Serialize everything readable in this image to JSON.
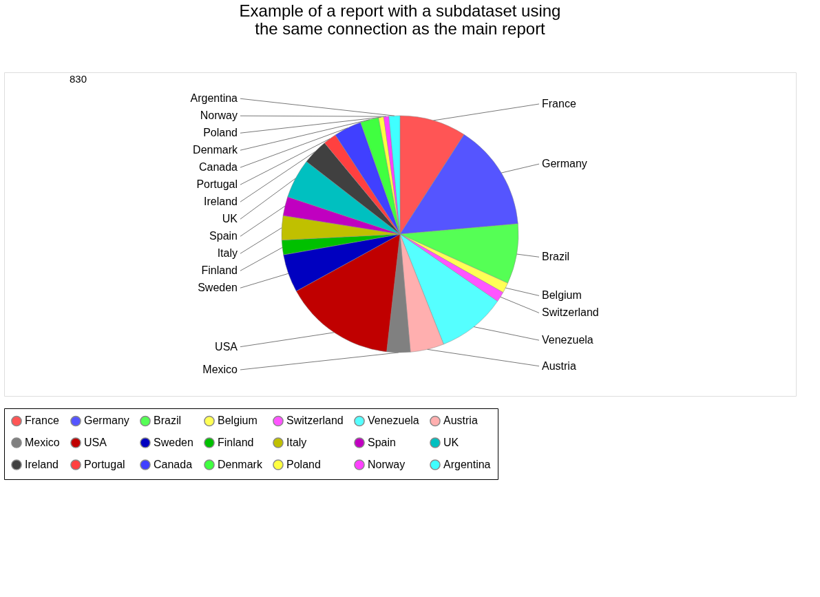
{
  "chart_data": {
    "type": "pie",
    "title": "Example of a report with a subdataset using the same connection as the main report",
    "annotations": [
      "830"
    ],
    "categories": [
      "France",
      "Germany",
      "Brazil",
      "Belgium",
      "Switzerland",
      "Venezuela",
      "Austria",
      "Mexico",
      "USA",
      "Sweden",
      "Finland",
      "Italy",
      "Spain",
      "UK",
      "Ireland",
      "Portugal",
      "Canada",
      "Denmark",
      "Poland",
      "Norway",
      "Argentina"
    ],
    "values": [
      9.1,
      14.5,
      8.2,
      1.4,
      1.4,
      9.4,
      4.6,
      3.2,
      15.2,
      5.2,
      2.0,
      3.3,
      2.6,
      5.4,
      3.5,
      1.8,
      3.8,
      2.5,
      0.7,
      0.7,
      1.5
    ],
    "colors": [
      "#ff5555",
      "#5555ff",
      "#55ff55",
      "#ffff55",
      "#ff55ff",
      "#55ffff",
      "#ffafaf",
      "#808080",
      "#c00000",
      "#0000c0",
      "#00c000",
      "#c0c000",
      "#c000c0",
      "#00c0c0",
      "#404040",
      "#ff4040",
      "#4040ff",
      "#40ff40",
      "#ffff40",
      "#ff40ff",
      "#40ffff"
    ],
    "legend": "bottom"
  }
}
